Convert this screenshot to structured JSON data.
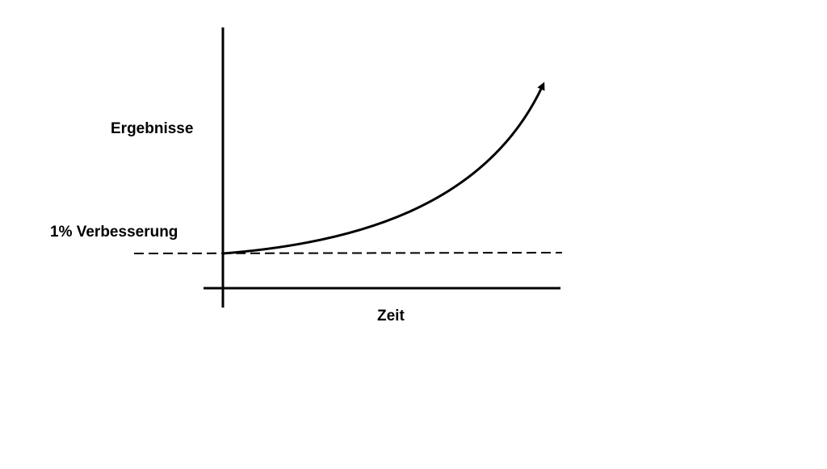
{
  "labels": {
    "y_axis": "Ergebnisse",
    "baseline": "1% Verbesserung",
    "x_axis": "Zeit"
  },
  "colors": {
    "line": "#000000",
    "background": "#ffffff"
  }
}
